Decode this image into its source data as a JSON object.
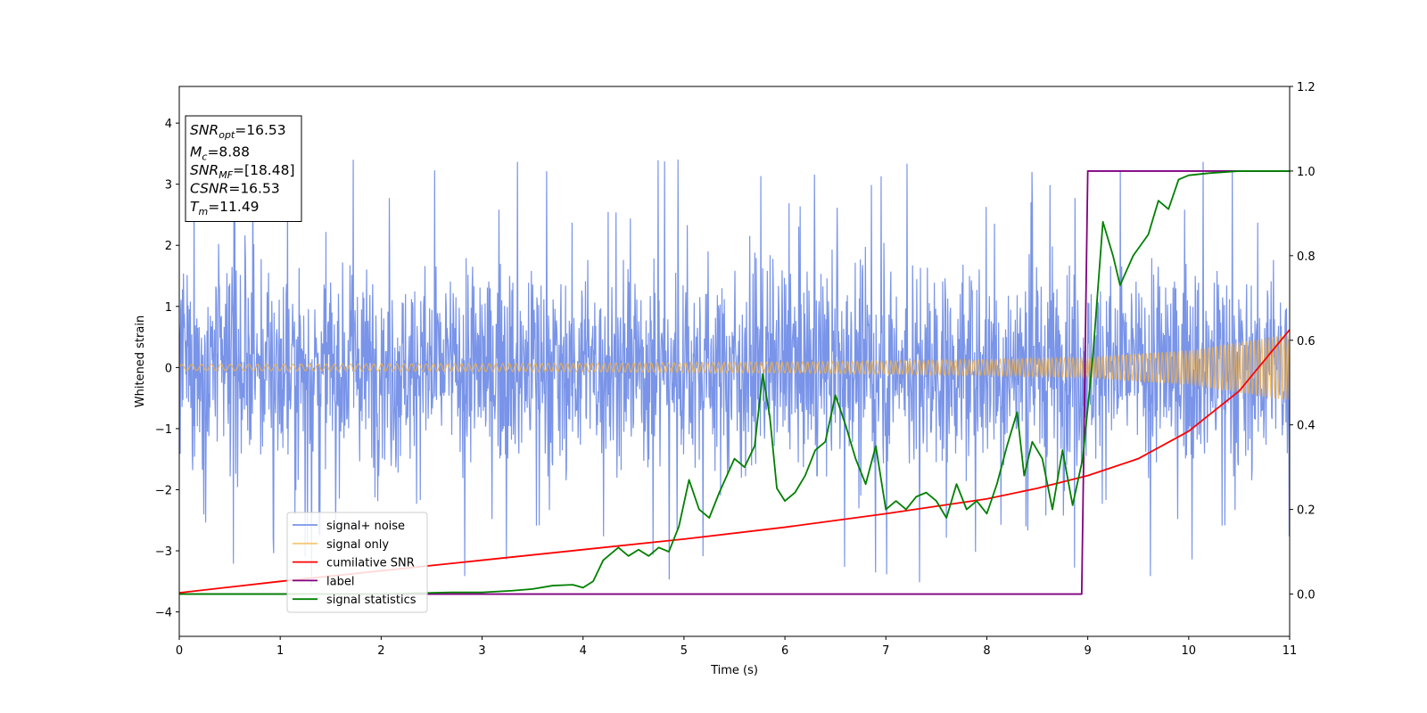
{
  "chart_data": {
    "type": "line",
    "xlabel": "Time (s)",
    "ylabel": "Whitened strain",
    "xlim": [
      0,
      11
    ],
    "ylim": [
      -4.4,
      4.6
    ],
    "ylim_right": [
      -0.1,
      1.2
    ],
    "xticks": [
      "0",
      "1",
      "2",
      "3",
      "4",
      "5",
      "6",
      "7",
      "8",
      "9",
      "10",
      "11"
    ],
    "yticks_left": [
      "−4",
      "−3",
      "−2",
      "−1",
      "0",
      "1",
      "2",
      "3",
      "4"
    ],
    "yticks_right": [
      "0.0",
      "0.2",
      "0.4",
      "0.6",
      "0.8",
      "1.0",
      "1.2"
    ],
    "grid": false,
    "legend_position": "lower-left",
    "info_box": {
      "position": "top-left",
      "lines": [
        {
          "base": "SNR",
          "sub": "opt",
          "value": "=16.53"
        },
        {
          "base": "M",
          "sub": "c",
          "value": "=8.88"
        },
        {
          "base": "SNR",
          "sub": "MF",
          "value": "=[18.48]"
        },
        {
          "base": "CSNR",
          "sub": "",
          "value": "=16.53"
        },
        {
          "base": "T",
          "sub": "m",
          "value": "=11.49"
        }
      ]
    },
    "series": [
      {
        "name": "signal+ noise",
        "color": "#7994e8",
        "axis": "left",
        "style": "noise-band",
        "amplitude_envelope": {
          "x": [
            0,
            11
          ],
          "typical_max": 2.3,
          "peak_max": 3.6,
          "peak_min": -4.0
        }
      },
      {
        "name": "signal only",
        "color": "#f5b041",
        "axis": "left",
        "style": "chirp",
        "envelope": {
          "x": [
            0,
            2,
            4,
            6,
            8,
            9,
            10,
            11
          ],
          "amplitude": [
            0.05,
            0.06,
            0.07,
            0.09,
            0.13,
            0.17,
            0.28,
            0.55
          ]
        }
      },
      {
        "name": "cumilative SNR",
        "color": "#ff0000",
        "axis": "right",
        "x": [
          0,
          1,
          2,
          3,
          4,
          5,
          6,
          7,
          8,
          8.5,
          9,
          9.5,
          10,
          10.5,
          11
        ],
        "y": [
          0.003,
          0.03,
          0.055,
          0.08,
          0.105,
          0.13,
          0.158,
          0.19,
          0.225,
          0.25,
          0.28,
          0.32,
          0.385,
          0.48,
          0.625
        ]
      },
      {
        "name": "label",
        "color": "#800080",
        "axis": "right",
        "x": [
          0,
          8.94,
          9.0,
          11
        ],
        "y": [
          0,
          0,
          1,
          1
        ]
      },
      {
        "name": "signal statistics",
        "color": "#008000",
        "axis": "right",
        "x": [
          0,
          0.5,
          1,
          1.5,
          2,
          2.5,
          2.7,
          3,
          3.3,
          3.5,
          3.7,
          3.9,
          4.0,
          4.1,
          4.2,
          4.35,
          4.45,
          4.55,
          4.65,
          4.75,
          4.85,
          4.95,
          5.05,
          5.15,
          5.25,
          5.35,
          5.5,
          5.6,
          5.7,
          5.78,
          5.85,
          5.92,
          6.0,
          6.1,
          6.2,
          6.3,
          6.4,
          6.5,
          6.6,
          6.7,
          6.8,
          6.9,
          7.0,
          7.1,
          7.2,
          7.3,
          7.4,
          7.5,
          7.6,
          7.7,
          7.8,
          7.9,
          8.0,
          8.1,
          8.2,
          8.3,
          8.37,
          8.45,
          8.55,
          8.65,
          8.75,
          8.85,
          8.95,
          9.05,
          9.15,
          9.25,
          9.32,
          9.45,
          9.6,
          9.7,
          9.8,
          9.9,
          10.0,
          10.2,
          10.5,
          11
        ],
        "y": [
          0,
          0,
          0,
          0,
          0,
          0.003,
          0.004,
          0.004,
          0.008,
          0.012,
          0.02,
          0.022,
          0.015,
          0.03,
          0.08,
          0.11,
          0.09,
          0.105,
          0.09,
          0.11,
          0.1,
          0.16,
          0.27,
          0.2,
          0.18,
          0.24,
          0.32,
          0.3,
          0.35,
          0.52,
          0.42,
          0.25,
          0.22,
          0.24,
          0.28,
          0.34,
          0.36,
          0.47,
          0.4,
          0.32,
          0.26,
          0.35,
          0.2,
          0.22,
          0.2,
          0.23,
          0.24,
          0.22,
          0.18,
          0.26,
          0.2,
          0.22,
          0.19,
          0.26,
          0.35,
          0.43,
          0.28,
          0.36,
          0.32,
          0.2,
          0.34,
          0.21,
          0.32,
          0.56,
          0.88,
          0.8,
          0.73,
          0.8,
          0.85,
          0.93,
          0.91,
          0.98,
          0.99,
          0.995,
          1.0,
          1.0
        ]
      }
    ]
  }
}
